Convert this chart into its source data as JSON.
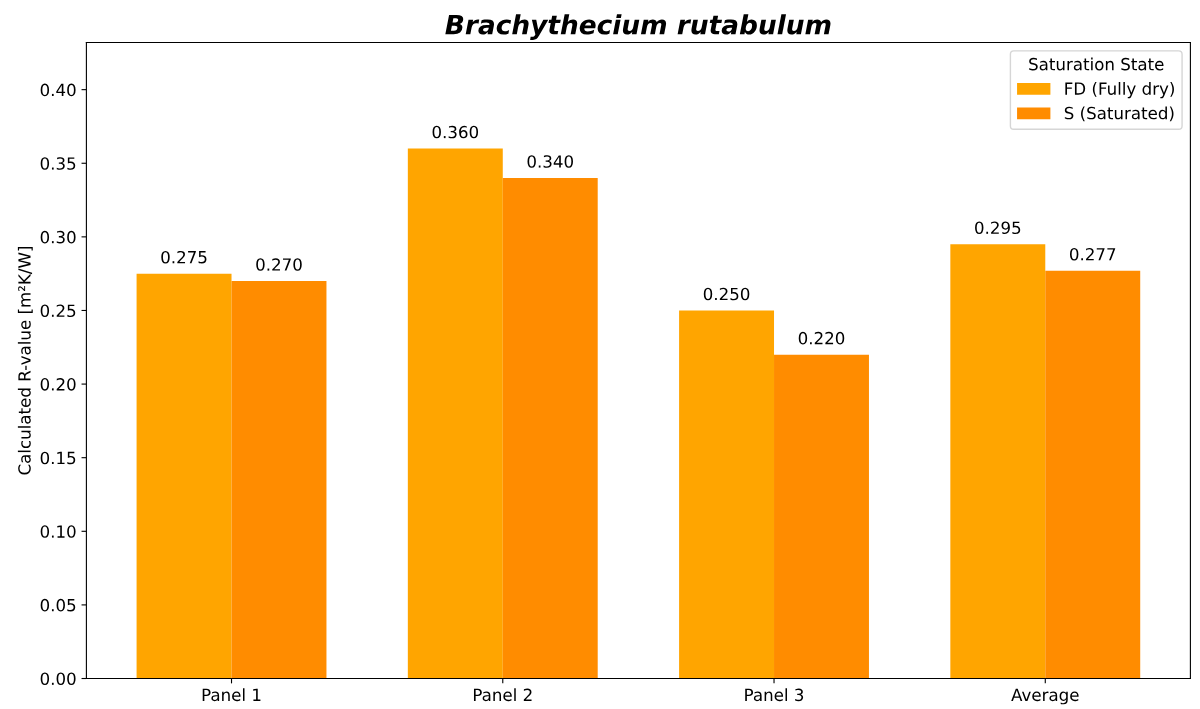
{
  "chart_data": {
    "type": "bar",
    "title": "Brachythecium rutabulum",
    "ylabel": "Calculated R-value [m²K/W]",
    "legend_title": "Saturation State",
    "legend": "top right",
    "categories": [
      "Panel 1",
      "Panel 2",
      "Panel 3",
      "Average"
    ],
    "series": [
      {
        "name": "FD (Fully dry)",
        "color": "#ffa500",
        "values": [
          0.275,
          0.36,
          0.25,
          0.295
        ],
        "value_labels": [
          "0.275",
          "0.360",
          "0.250",
          "0.295"
        ]
      },
      {
        "name": "S (Saturated)",
        "color": "#ff8c00",
        "values": [
          0.27,
          0.34,
          0.22,
          0.277
        ],
        "value_labels": [
          "0.270",
          "0.340",
          "0.220",
          "0.277"
        ]
      }
    ],
    "ylim": [
      0,
      0.432
    ],
    "yticks": [
      {
        "value": 0,
        "label": "0.00"
      },
      {
        "value": 0.05,
        "label": "0.05"
      },
      {
        "value": 0.1,
        "label": "0.10"
      },
      {
        "value": 0.15,
        "label": "0.15"
      },
      {
        "value": 0.2,
        "label": "0.20"
      },
      {
        "value": 0.25,
        "label": "0.25"
      },
      {
        "value": 0.3,
        "label": "0.30"
      },
      {
        "value": 0.35,
        "label": "0.35"
      },
      {
        "value": 0.4,
        "label": "0.40"
      }
    ],
    "grid": false
  }
}
